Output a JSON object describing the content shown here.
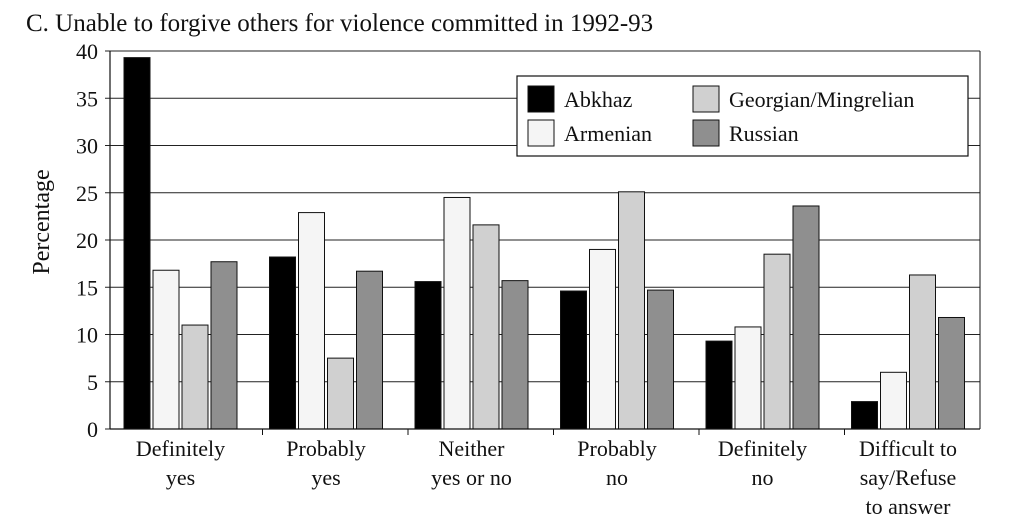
{
  "chart_data": {
    "type": "bar",
    "title": "C. Unable to forgive others for violence committed in 1992-93",
    "xlabel": "",
    "ylabel": "Percentage",
    "ylim": [
      0,
      40
    ],
    "yticks": [
      0,
      5,
      10,
      15,
      20,
      25,
      30,
      35,
      40
    ],
    "grid": true,
    "legend_placement": "top-right",
    "categories": [
      [
        "Definitely",
        "yes"
      ],
      [
        "Probably",
        "yes"
      ],
      [
        "Neither",
        "yes or no"
      ],
      [
        "Probably",
        "no"
      ],
      [
        "Definitely",
        "no"
      ],
      [
        "Difficult to",
        "say/Refuse",
        "to answer"
      ]
    ],
    "series": [
      {
        "name": "Abkhaz",
        "color": "#000000",
        "values": [
          39.3,
          18.2,
          15.6,
          14.6,
          9.3,
          2.9
        ]
      },
      {
        "name": "Armenian",
        "color": "#f5f5f5",
        "values": [
          16.8,
          22.9,
          24.5,
          19.0,
          10.8,
          6.0
        ]
      },
      {
        "name": "Georgian/Mingrelian",
        "color": "#d0d0d0",
        "values": [
          11.0,
          7.5,
          21.6,
          25.1,
          18.5,
          16.3
        ]
      },
      {
        "name": "Russian",
        "color": "#8f8f8f",
        "values": [
          17.7,
          16.7,
          15.7,
          14.7,
          23.6,
          11.8
        ]
      }
    ],
    "legend_order": [
      0,
      2,
      1,
      3
    ]
  }
}
